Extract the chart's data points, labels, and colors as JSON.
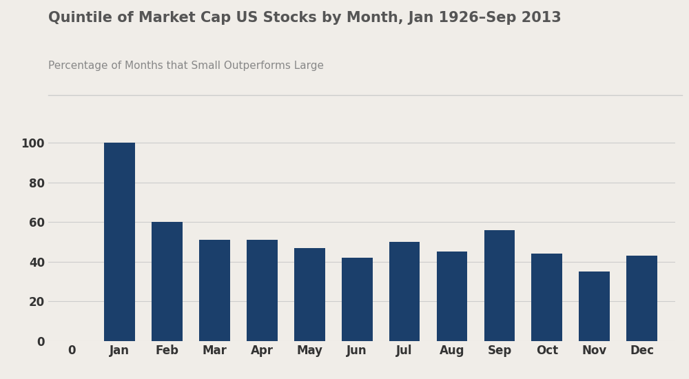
{
  "title": "Quintile of Market Cap US Stocks by Month, Jan 1926–Sep 2013",
  "subtitle": "Percentage of Months that Small Outperforms Large",
  "categories": [
    "Jan",
    "Feb",
    "Mar",
    "Apr",
    "May",
    "Jun",
    "Jul",
    "Aug",
    "Sep",
    "Oct",
    "Nov",
    "Dec"
  ],
  "values": [
    100,
    60,
    51,
    51,
    47,
    42,
    50,
    45,
    56,
    44,
    35,
    43
  ],
  "bar_color": "#1b3f6b",
  "background_color": "#f0ede8",
  "title_color": "#555555",
  "subtitle_color": "#888888",
  "axis_label_color": "#333333",
  "grid_color": "#cccccc",
  "ylim": [
    0,
    105
  ],
  "yticks": [
    0,
    20,
    40,
    60,
    80,
    100
  ],
  "title_fontsize": 15,
  "subtitle_fontsize": 11,
  "tick_fontsize": 12
}
